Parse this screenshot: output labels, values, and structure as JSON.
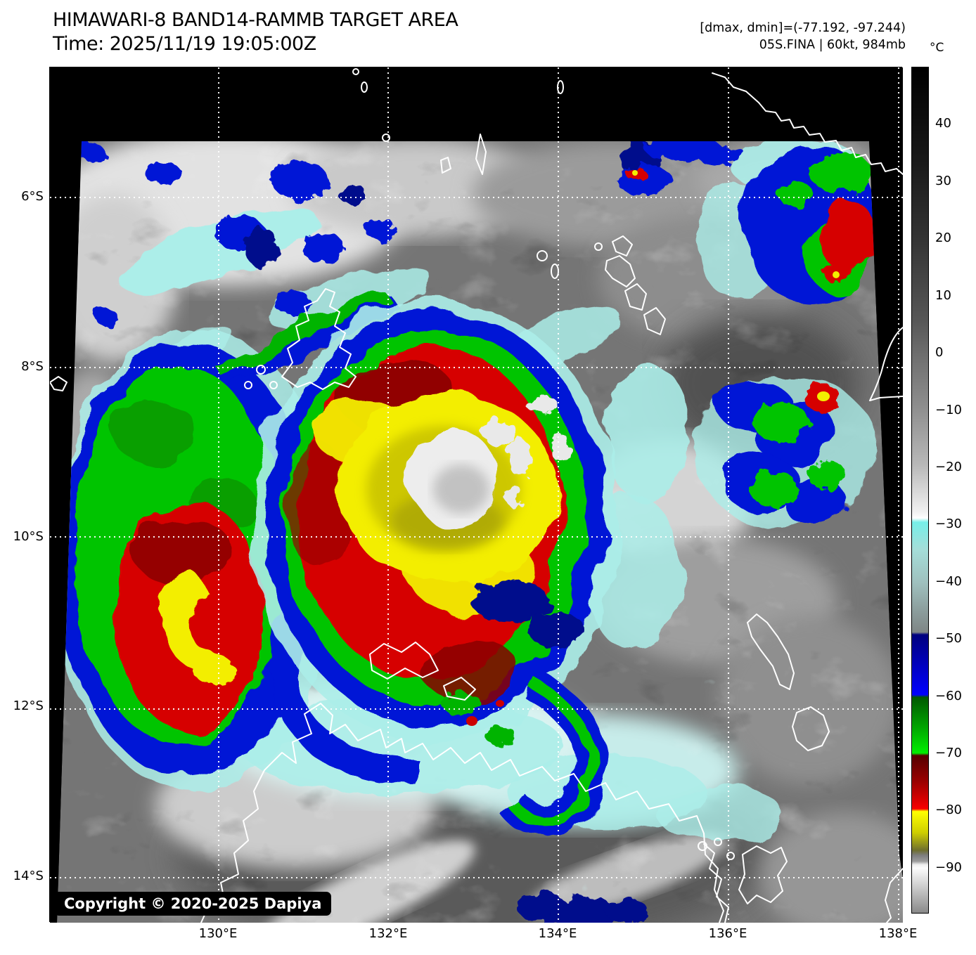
{
  "header": {
    "title": "HIMAWARI-8 BAND14-RAMMB TARGET AREA",
    "time_line": "Time: 2025/11/19 19:05:00Z",
    "dmax_dmin": "[dmax, dmin]=(-77.192, -97.244)",
    "storm_info": "05S.FINA | 60kt, 984mb"
  },
  "colorbar": {
    "unit": "°C",
    "ticks": [
      {
        "label": "40",
        "value": 40
      },
      {
        "label": "30",
        "value": 30
      },
      {
        "label": "20",
        "value": 20
      },
      {
        "label": "10",
        "value": 10
      },
      {
        "label": "0",
        "value": 0
      },
      {
        "label": "−10",
        "value": -10
      },
      {
        "label": "−20",
        "value": -20
      },
      {
        "label": "−30",
        "value": -30
      },
      {
        "label": "−40",
        "value": -40
      },
      {
        "label": "−50",
        "value": -50
      },
      {
        "label": "−60",
        "value": -60
      },
      {
        "label": "−70",
        "value": -70
      },
      {
        "label": "−80",
        "value": -80
      },
      {
        "label": "−90",
        "value": -90
      }
    ],
    "band_colors": {
      "warm_gray_top": "#000000",
      "near_white": "#ffffff",
      "cirrus_cyan": "#76efe8",
      "cold_blue": "#0000fe",
      "cold_green": "#00ef00",
      "cold_red": "#f80000",
      "cold_yellow": "#ffff00",
      "overshoot_white": "#fcfcfc"
    }
  },
  "axes": {
    "lat_ticks": [
      {
        "label": "6°S",
        "value": 6
      },
      {
        "label": "8°S",
        "value": 8
      },
      {
        "label": "10°S",
        "value": 10
      },
      {
        "label": "12°S",
        "value": 12
      },
      {
        "label": "14°S",
        "value": 14
      }
    ],
    "lon_ticks": [
      {
        "label": "130°E",
        "value": 130
      },
      {
        "label": "132°E",
        "value": 132
      },
      {
        "label": "134°E",
        "value": 134
      },
      {
        "label": "136°E",
        "value": 136
      },
      {
        "label": "138°E",
        "value": 138
      }
    ]
  },
  "map": {
    "copyright": "Copyright © 2020-2025 Dapiya"
  }
}
